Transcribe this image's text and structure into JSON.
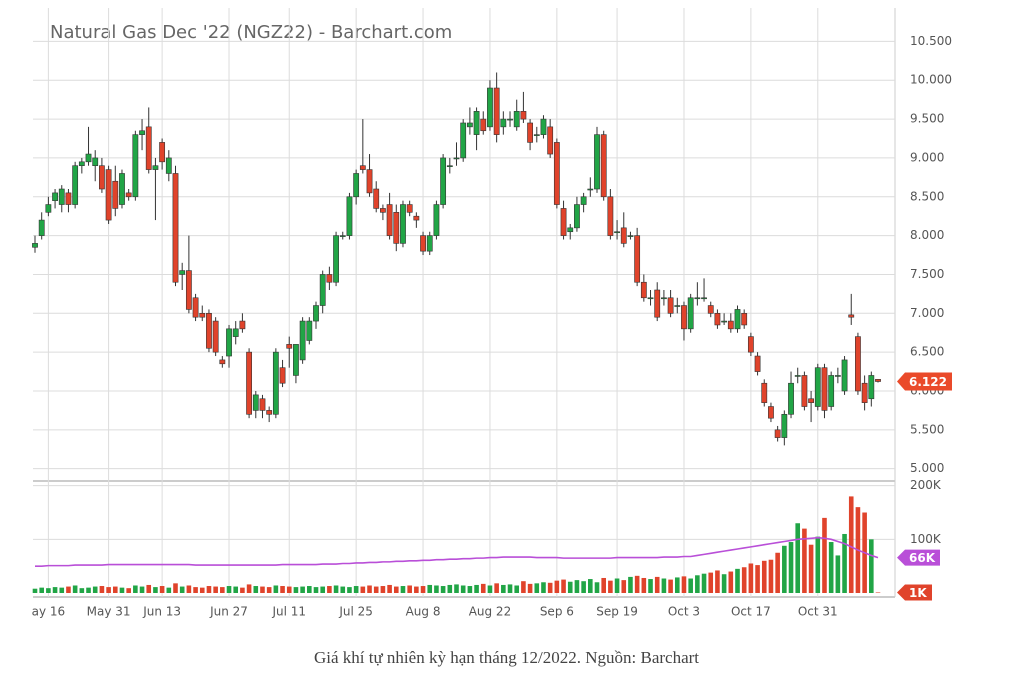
{
  "chart_data": {
    "type": "candlestick",
    "title": "Natural Gas Dec '22 (NGZ22) - Barchart.com",
    "caption": "Giá khí tự nhiên kỳ hạn tháng 12/2022. Nguồn: Barchart",
    "categories": [
      null,
      null,
      "ay 16",
      null,
      null,
      null,
      null,
      null,
      null,
      null,
      null,
      "May 31",
      null,
      null,
      null,
      null,
      null,
      null,
      null,
      "Jun 13",
      null,
      null,
      null,
      null,
      null,
      null,
      null,
      null,
      null,
      "Jun 27",
      null,
      null,
      null,
      null,
      null,
      null,
      null,
      null,
      "Jul 11",
      null,
      null,
      null,
      null,
      null,
      null,
      null,
      null,
      null,
      "Jul 25",
      null,
      null,
      null,
      null,
      null,
      null,
      null,
      null,
      null,
      "Aug 8",
      null,
      null,
      null,
      null,
      null,
      null,
      null,
      null,
      null,
      "Aug 22",
      null,
      null,
      null,
      null,
      null,
      null,
      null,
      null,
      null,
      "Sep 6",
      null,
      null,
      null,
      null,
      null,
      null,
      null,
      null,
      "Sep 19",
      null,
      null,
      null,
      null,
      null,
      null,
      null,
      null,
      null,
      "Oct 3",
      null,
      null,
      null,
      null,
      null,
      null,
      null,
      null,
      null,
      "Oct 17",
      null,
      null,
      null,
      null,
      null,
      null,
      null,
      null,
      null,
      "Oct 31",
      null,
      null,
      null,
      null,
      null,
      null,
      null,
      null,
      null
    ],
    "ohlc": [
      [
        7.85,
        8.0,
        7.78,
        7.9
      ],
      [
        8.0,
        8.3,
        7.95,
        8.2
      ],
      [
        8.3,
        8.5,
        8.25,
        8.4
      ],
      [
        8.45,
        8.6,
        8.35,
        8.55
      ],
      [
        8.4,
        8.65,
        8.3,
        8.6
      ],
      [
        8.55,
        8.6,
        8.3,
        8.4
      ],
      [
        8.4,
        8.95,
        8.35,
        8.9
      ],
      [
        8.9,
        9.0,
        8.8,
        8.95
      ],
      [
        8.95,
        9.4,
        8.9,
        9.05
      ],
      [
        8.9,
        9.1,
        8.7,
        9.0
      ],
      [
        8.9,
        9.0,
        8.55,
        8.6
      ],
      [
        8.85,
        8.9,
        8.15,
        8.2
      ],
      [
        8.7,
        8.9,
        8.25,
        8.35
      ],
      [
        8.4,
        8.85,
        8.35,
        8.8
      ],
      [
        8.55,
        8.6,
        8.45,
        8.5
      ],
      [
        8.5,
        9.35,
        8.45,
        9.3
      ],
      [
        9.3,
        9.5,
        9.1,
        9.35
      ],
      [
        9.4,
        9.65,
        8.8,
        8.85
      ],
      [
        8.85,
        9.0,
        8.2,
        8.9
      ],
      [
        9.2,
        9.25,
        8.85,
        8.95
      ],
      [
        8.8,
        9.1,
        8.7,
        9.0
      ],
      [
        8.8,
        8.9,
        7.35,
        7.4
      ],
      [
        7.5,
        7.65,
        7.3,
        7.55
      ],
      [
        7.55,
        8.0,
        7.0,
        7.05
      ],
      [
        7.2,
        7.25,
        6.9,
        6.95
      ],
      [
        7.0,
        7.1,
        6.9,
        6.95
      ],
      [
        7.0,
        7.05,
        6.5,
        6.55
      ],
      [
        6.9,
        6.95,
        6.45,
        6.5
      ],
      [
        6.4,
        6.45,
        6.3,
        6.35
      ],
      [
        6.45,
        6.85,
        6.3,
        6.8
      ],
      [
        6.7,
        6.9,
        6.6,
        6.8
      ],
      [
        6.9,
        7.0,
        6.75,
        6.8
      ],
      [
        6.5,
        6.55,
        5.65,
        5.7
      ],
      [
        5.75,
        6.0,
        5.65,
        5.95
      ],
      [
        5.9,
        5.95,
        5.65,
        5.75
      ],
      [
        5.75,
        5.8,
        5.6,
        5.7
      ],
      [
        5.7,
        6.55,
        5.65,
        6.5
      ],
      [
        6.3,
        6.4,
        6.05,
        6.1
      ],
      [
        6.6,
        6.7,
        6.3,
        6.55
      ],
      [
        6.2,
        6.6,
        6.1,
        6.6
      ],
      [
        6.4,
        6.95,
        6.35,
        6.9
      ],
      [
        6.65,
        6.95,
        6.6,
        6.9
      ],
      [
        6.9,
        7.15,
        6.8,
        7.1
      ],
      [
        7.1,
        7.55,
        7.0,
        7.5
      ],
      [
        7.5,
        7.6,
        7.3,
        7.4
      ],
      [
        7.4,
        8.05,
        7.35,
        8.0
      ],
      [
        8.0,
        8.05,
        7.95,
        8.0
      ],
      [
        8.0,
        8.55,
        7.95,
        8.5
      ],
      [
        8.5,
        8.85,
        8.4,
        8.8
      ],
      [
        8.9,
        9.5,
        8.8,
        8.85
      ],
      [
        8.85,
        9.05,
        8.5,
        8.55
      ],
      [
        8.6,
        8.7,
        8.3,
        8.35
      ],
      [
        8.35,
        8.4,
        8.2,
        8.3
      ],
      [
        8.4,
        8.55,
        7.95,
        8.0
      ],
      [
        8.3,
        8.4,
        7.8,
        7.9
      ],
      [
        7.9,
        8.45,
        7.85,
        8.4
      ],
      [
        8.4,
        8.45,
        8.25,
        8.3
      ],
      [
        8.25,
        8.3,
        8.1,
        8.2
      ],
      [
        8.0,
        8.05,
        7.75,
        7.8
      ],
      [
        7.8,
        8.05,
        7.75,
        8.0
      ],
      [
        8.0,
        8.45,
        7.95,
        8.4
      ],
      [
        8.4,
        9.05,
        8.35,
        9.0
      ],
      [
        8.9,
        9.0,
        8.8,
        8.9
      ],
      [
        9.0,
        9.2,
        8.9,
        9.0
      ],
      [
        9.0,
        9.5,
        8.95,
        9.45
      ],
      [
        9.4,
        9.65,
        9.3,
        9.45
      ],
      [
        9.3,
        9.65,
        9.1,
        9.6
      ],
      [
        9.5,
        9.6,
        9.3,
        9.35
      ],
      [
        9.4,
        10.0,
        9.35,
        9.9
      ],
      [
        9.9,
        10.1,
        9.2,
        9.3
      ],
      [
        9.4,
        9.6,
        9.3,
        9.5
      ],
      [
        9.5,
        9.6,
        9.4,
        9.5
      ],
      [
        9.4,
        9.75,
        9.35,
        9.6
      ],
      [
        9.6,
        9.85,
        9.45,
        9.5
      ],
      [
        9.45,
        9.5,
        9.1,
        9.2
      ],
      [
        9.3,
        9.4,
        9.2,
        9.3
      ],
      [
        9.3,
        9.55,
        9.25,
        9.5
      ],
      [
        9.4,
        9.5,
        9.0,
        9.05
      ],
      [
        9.2,
        9.25,
        8.35,
        8.4
      ],
      [
        8.35,
        8.45,
        7.95,
        8.0
      ],
      [
        8.05,
        8.15,
        7.95,
        8.1
      ],
      [
        8.1,
        8.5,
        8.05,
        8.4
      ],
      [
        8.4,
        8.55,
        8.3,
        8.5
      ],
      [
        8.6,
        8.75,
        8.5,
        8.6
      ],
      [
        8.6,
        9.4,
        8.55,
        9.3
      ],
      [
        9.3,
        9.35,
        8.45,
        8.5
      ],
      [
        8.5,
        8.6,
        7.95,
        8.0
      ],
      [
        8.05,
        8.2,
        7.95,
        8.05
      ],
      [
        8.1,
        8.3,
        7.85,
        7.9
      ],
      [
        8.0,
        8.05,
        7.95,
        8.0
      ],
      [
        8.0,
        8.1,
        7.35,
        7.4
      ],
      [
        7.4,
        7.5,
        7.15,
        7.2
      ],
      [
        7.2,
        7.3,
        7.1,
        7.2
      ],
      [
        7.3,
        7.4,
        6.9,
        6.95
      ],
      [
        7.2,
        7.3,
        7.1,
        7.2
      ],
      [
        7.2,
        7.3,
        6.95,
        7.0
      ],
      [
        7.1,
        7.2,
        7.0,
        7.1
      ],
      [
        7.1,
        7.15,
        6.65,
        6.8
      ],
      [
        6.8,
        7.25,
        6.75,
        7.2
      ],
      [
        7.2,
        7.4,
        7.1,
        7.2
      ],
      [
        7.2,
        7.45,
        7.15,
        7.2
      ],
      [
        7.1,
        7.15,
        6.95,
        7.0
      ],
      [
        7.0,
        7.05,
        6.8,
        6.85
      ],
      [
        6.9,
        7.0,
        6.85,
        6.9
      ],
      [
        6.9,
        7.0,
        6.75,
        6.8
      ],
      [
        6.8,
        7.1,
        6.75,
        7.05
      ],
      [
        7.0,
        7.05,
        6.8,
        6.85
      ],
      [
        6.7,
        6.75,
        6.45,
        6.5
      ],
      [
        6.45,
        6.5,
        6.2,
        6.25
      ],
      [
        6.1,
        6.15,
        5.8,
        5.85
      ],
      [
        5.8,
        5.85,
        5.6,
        5.65
      ],
      [
        5.5,
        5.55,
        5.35,
        5.4
      ],
      [
        5.4,
        5.75,
        5.3,
        5.7
      ],
      [
        5.7,
        6.25,
        5.65,
        6.1
      ],
      [
        6.2,
        6.3,
        6.1,
        6.2
      ],
      [
        6.2,
        6.25,
        5.75,
        5.8
      ],
      [
        5.9,
        6.0,
        5.6,
        5.85
      ],
      [
        5.8,
        6.35,
        5.75,
        6.3
      ],
      [
        6.3,
        6.35,
        5.65,
        5.75
      ],
      [
        5.8,
        6.25,
        5.75,
        6.2
      ],
      [
        6.2,
        6.3,
        6.1,
        6.2
      ],
      [
        6.0,
        6.45,
        5.95,
        6.4
      ],
      [
        6.98,
        7.25,
        6.85,
        6.95
      ],
      [
        6.7,
        6.75,
        5.95,
        6.0
      ],
      [
        6.1,
        6.2,
        5.75,
        5.85
      ],
      [
        5.9,
        6.25,
        5.8,
        6.2
      ],
      [
        6.15,
        6.15,
        6.11,
        6.122
      ]
    ],
    "volume": [
      8000,
      10000,
      9000,
      11000,
      10000,
      12000,
      14000,
      9000,
      10000,
      12000,
      13000,
      11000,
      12000,
      10000,
      9000,
      14000,
      12000,
      15000,
      11000,
      13000,
      10000,
      18000,
      12000,
      14000,
      11000,
      10000,
      13000,
      12000,
      11000,
      13000,
      12000,
      10000,
      16000,
      13000,
      12000,
      11000,
      14000,
      13000,
      12000,
      11000,
      12000,
      13000,
      11000,
      12000,
      13000,
      14000,
      12000,
      11000,
      13000,
      12000,
      14000,
      12000,
      13000,
      15000,
      12000,
      13000,
      14000,
      12000,
      13000,
      15000,
      14000,
      13000,
      15000,
      16000,
      14000,
      13000,
      15000,
      17000,
      14000,
      18000,
      15000,
      16000,
      14000,
      22000,
      17000,
      18000,
      20000,
      19000,
      23000,
      25000,
      21000,
      24000,
      22000,
      26000,
      20000,
      28000,
      23000,
      27000,
      24000,
      30000,
      32000,
      28000,
      26000,
      30000,
      27000,
      25000,
      29000,
      31000,
      27000,
      33000,
      36000,
      38000,
      42000,
      35000,
      40000,
      45000,
      48000,
      55000,
      52000,
      60000,
      62000,
      75000,
      88000,
      95000,
      130000,
      120000,
      90000,
      105000,
      140000,
      95000,
      70000,
      110000,
      180000,
      160000,
      150000,
      100000,
      1000
    ],
    "volume_label": "1K",
    "volume_ma": {
      "values": [
        50000,
        50000,
        51000,
        51000,
        51000,
        51000,
        52000,
        52000,
        52000,
        52000,
        52000,
        53000,
        53000,
        53000,
        53000,
        53000,
        53000,
        53000,
        53000,
        53000,
        53000,
        53000,
        53000,
        53000,
        52000,
        52000,
        52000,
        52000,
        52000,
        52000,
        52000,
        52000,
        52000,
        52000,
        52000,
        52000,
        52000,
        53000,
        53000,
        53000,
        53000,
        53000,
        53000,
        54000,
        54000,
        54000,
        55000,
        55000,
        56000,
        56000,
        57000,
        57000,
        58000,
        58000,
        59000,
        59000,
        60000,
        60000,
        61000,
        61000,
        62000,
        62000,
        63000,
        63000,
        64000,
        64000,
        65000,
        65000,
        66000,
        66000,
        67000,
        67000,
        67000,
        67000,
        67000,
        66000,
        66000,
        66000,
        66000,
        65000,
        65000,
        65000,
        65000,
        65000,
        65000,
        65000,
        65000,
        66000,
        66000,
        66000,
        66000,
        66000,
        66000,
        66000,
        67000,
        67000,
        67000,
        68000,
        68000,
        70000,
        72000,
        74000,
        76000,
        78000,
        80000,
        82000,
        84000,
        86000,
        88000,
        90000,
        92000,
        94000,
        96000,
        98000,
        100000,
        101000,
        102000,
        103000,
        102000,
        100000,
        96000,
        92000,
        86000,
        80000,
        75000,
        70000,
        66000
      ],
      "label": "66K"
    },
    "ylim": [
      4.88,
      10.93
    ],
    "yticks": [
      {
        "value": 5,
        "label": "5.000"
      },
      {
        "value": 5.5,
        "label": "5.500"
      },
      {
        "value": 6,
        "label": "6.000"
      },
      {
        "value": 6.5,
        "label": "6.500"
      },
      {
        "value": 7,
        "label": "7.000"
      },
      {
        "value": 7.5,
        "label": "7.500"
      },
      {
        "value": 8,
        "label": "8.000"
      },
      {
        "value": 8.5,
        "label": "8.500"
      },
      {
        "value": 9,
        "label": "9.000"
      },
      {
        "value": 9.5,
        "label": "9.500"
      },
      {
        "value": 10,
        "label": "10.000"
      },
      {
        "value": 10.5,
        "label": "10.500"
      }
    ],
    "y2lim": [
      0,
      205000
    ],
    "y2ticks": [
      {
        "value": 100000,
        "label": "100K"
      },
      {
        "value": 200000,
        "label": "200K"
      }
    ],
    "up_color": "#21a546",
    "down_color": "#e0432b",
    "ma_color": "#b94fd8",
    "price_marker_color": "#ea4a2a",
    "grid": true
  }
}
